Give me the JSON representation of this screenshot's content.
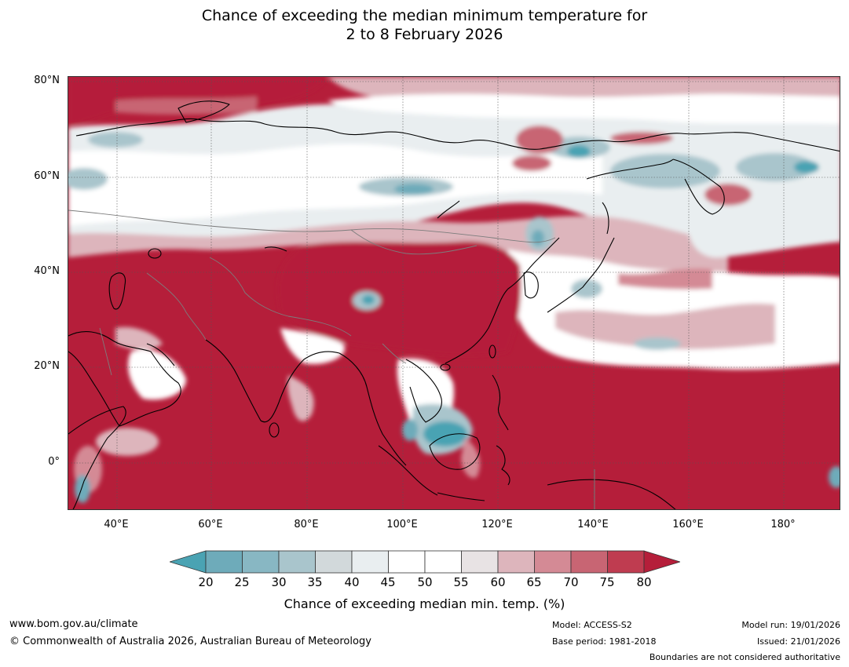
{
  "title": {
    "line1": "Chance of exceeding the median minimum temperature for",
    "line2": "2 to 8 February 2026"
  },
  "axes": {
    "latitude_labels": [
      "80°N",
      "60°N",
      "40°N",
      "20°N",
      "0°"
    ],
    "longitude_labels": [
      "40°E",
      "60°E",
      "80°E",
      "100°E",
      "120°E",
      "140°E",
      "160°E",
      "180°"
    ]
  },
  "colorbar": {
    "ticks": [
      "20",
      "25",
      "30",
      "35",
      "40",
      "45",
      "50",
      "55",
      "60",
      "65",
      "70",
      "75",
      "80"
    ],
    "title": "Chance of exceeding median min. temp. (%)",
    "colors": [
      "#4aa3b3",
      "#6eabba",
      "#88b7c3",
      "#a9c5cc",
      "#d2d9db",
      "#e9eef0",
      "#ffffff",
      "#ffffff",
      "#e8e3e4",
      "#ddb5bc",
      "#d48a95",
      "#c86573",
      "#bf3c50",
      "#b51e3a"
    ]
  },
  "map": {
    "region": "Asia",
    "palette": {
      "hot": "#b51e3a",
      "warm": "#c86573",
      "pink": "#ddb5bc",
      "white": "#ffffff",
      "grey": "#e9eef0",
      "cool": "#a9c5cc",
      "cold": "#4aa3b3"
    }
  },
  "footer": {
    "website": "www.bom.gov.au/climate",
    "copyright": "© Commonwealth of Australia 2026, Australian Bureau of Meteorology",
    "model": "Model: ACCESS-S2",
    "base_period": "Base period: 1981-2018",
    "model_run": "Model run: 19/01/2026",
    "issued": "Issued: 21/01/2026",
    "disclaimer": "Boundaries are not considered authoritative"
  }
}
